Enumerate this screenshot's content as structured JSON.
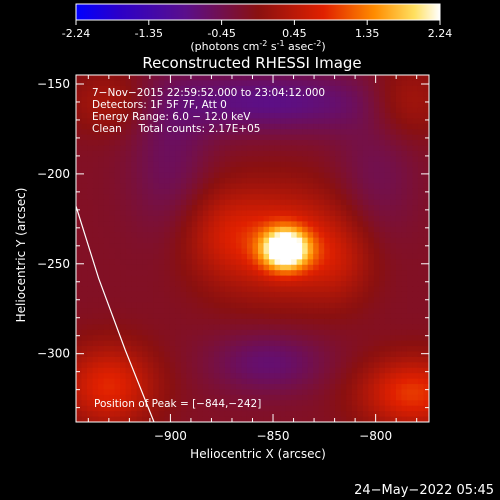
{
  "chart_data": {
    "type": "heatmap",
    "title": "Reconstructed RHESSI Image",
    "colorbar": {
      "ticks": [
        "-2.24",
        "-1.35",
        "-0.45",
        "0.45",
        "1.35",
        "2.24"
      ],
      "unit_label": "(photons cm",
      "unit_exp1": "-2",
      "unit_mid": " s",
      "unit_exp2": "-1",
      "unit_mid2": " asec",
      "unit_exp3": "-2",
      "unit_end": ")",
      "min": -2.24,
      "max": 2.24
    },
    "xlabel": "Heliocentric X (arcsec)",
    "ylabel": "Heliocentric Y (arcsec)",
    "xticks": [
      -900,
      -850,
      -800
    ],
    "xtick_labels": [
      "−900",
      "−850",
      "−800"
    ],
    "yticks": [
      -150,
      -200,
      -250,
      -300
    ],
    "ytick_labels": [
      "−150",
      "−200",
      "−250",
      "−300"
    ],
    "xlim": [
      -946,
      -774
    ],
    "ylim": [
      -338,
      -145
    ],
    "info_lines": [
      "7−Nov−2015 22:59:52.000 to 23:04:12.000",
      "Detectors: 1F 5F 7F, Att 0",
      "Energy Range: 6.0 − 12.0 keV",
      "Clean     Total counts: 2.17E+05"
    ],
    "peak_label": "Position of Peak = [−844,−242]",
    "peak": [
      -844,
      -242
    ],
    "limb_points": [
      [
        -946,
        -218
      ],
      [
        -935,
        -258
      ],
      [
        -922,
        -298
      ],
      [
        -908,
        -338
      ]
    ],
    "sources": [
      {
        "x": -844,
        "y": -242,
        "amp": 2.4,
        "sx": 8,
        "sy": 8
      },
      {
        "x": -845,
        "y": -238,
        "amp": 0.95,
        "sx": 26,
        "sy": 22
      },
      {
        "x": -875,
        "y": -232,
        "amp": 0.4,
        "sx": 14,
        "sy": 18
      },
      {
        "x": -818,
        "y": -250,
        "amp": 0.35,
        "sx": 12,
        "sy": 16
      },
      {
        "x": -930,
        "y": -318,
        "amp": 1.0,
        "sx": 16,
        "sy": 16
      },
      {
        "x": -782,
        "y": -322,
        "amp": 1.1,
        "sx": 18,
        "sy": 14
      },
      {
        "x": -930,
        "y": -160,
        "amp": 0.5,
        "sx": 14,
        "sy": 12
      },
      {
        "x": -785,
        "y": -160,
        "amp": 0.55,
        "sx": 14,
        "sy": 14
      },
      {
        "x": -852,
        "y": -160,
        "amp": -0.7,
        "sx": 40,
        "sy": 12
      },
      {
        "x": -852,
        "y": -305,
        "amp": -0.55,
        "sx": 20,
        "sy": 12
      },
      {
        "x": -900,
        "y": -195,
        "amp": -0.4,
        "sx": 14,
        "sy": 30
      },
      {
        "x": -800,
        "y": -205,
        "amp": -0.35,
        "sx": 14,
        "sy": 30
      }
    ]
  },
  "timestamp": "24−May−2022 05:45"
}
